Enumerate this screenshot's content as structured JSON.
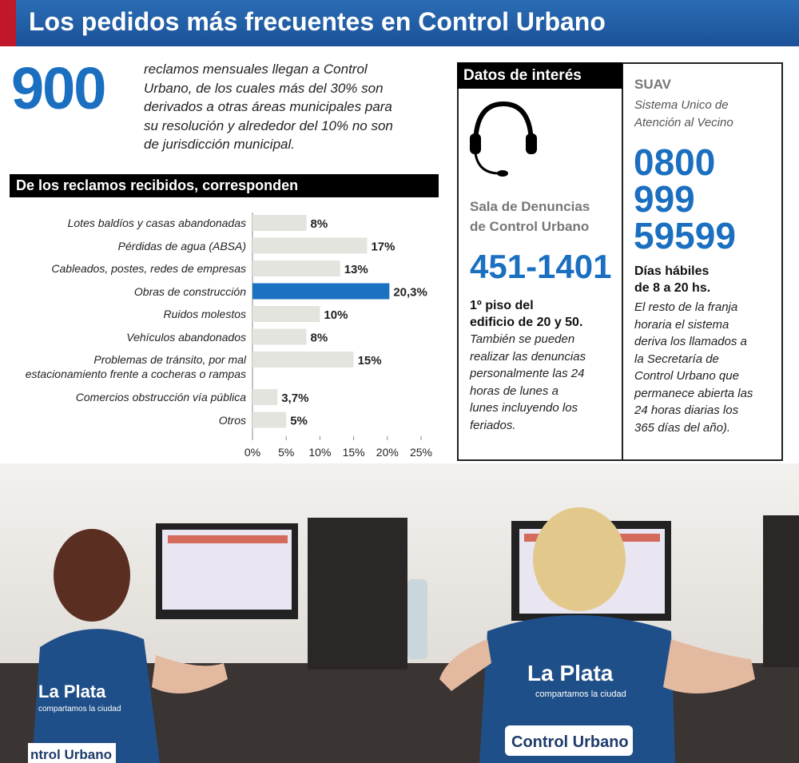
{
  "header": {
    "title": "Los pedidos más frecuentes en Control Urbano"
  },
  "intro": {
    "number": "900",
    "lines": [
      "reclamos mensuales llegan a Control",
      "Urbano, de los cuales más del 30% son",
      "derivados a otras áreas municipales para",
      "su resolución y alrededor del 10% no son",
      "de jurisdicción municipal."
    ]
  },
  "chart_data": {
    "type": "bar",
    "orientation": "horizontal",
    "title": "De los reclamos recibidos, corresponden",
    "categories": [
      "Lotes baldíos y casas abandonadas",
      "Pérdidas de agua (ABSA)",
      "Cableados, postes, redes de empresas",
      "Obras de construcción",
      "Ruidos molestos",
      "Vehículos abandonados",
      "Problemas de tránsito, por mal\nestacionamiento frente a cocheras o rampas",
      "Comercios obstrucción vía pública",
      "Otros"
    ],
    "values": [
      8,
      17,
      13,
      20.3,
      10,
      8,
      15,
      3.7,
      5
    ],
    "value_labels": [
      "8%",
      "17%",
      "13%",
      "20,3%",
      "10%",
      "8%",
      "15%",
      "3,7%",
      "5%"
    ],
    "colors": [
      "#e4e4de",
      "#e4e4de",
      "#e4e4de",
      "#1b72c2",
      "#e4e4de",
      "#e4e4de",
      "#e4e4de",
      "#e4e4de",
      "#e4e4de"
    ],
    "xlim": [
      0,
      25
    ],
    "xticks": [
      {
        "value": 0,
        "label": "0%"
      },
      {
        "value": 5,
        "label": "5%"
      },
      {
        "value": 10,
        "label": "10%"
      },
      {
        "value": 15,
        "label": "15%"
      },
      {
        "value": 20,
        "label": "20%"
      },
      {
        "value": 25,
        "label": "25%"
      }
    ]
  },
  "info": {
    "title": "Datos de interés",
    "left": {
      "name_lines": [
        "Sala de Denuncias",
        "de Control Urbano"
      ],
      "phone": "451-1401",
      "bold_lines": [
        "1º piso del",
        "edificio de 20 y 50."
      ],
      "italic_lines": [
        "También se pueden",
        "realizar las denuncias",
        "personalmente las 24",
        "horas de lunes a",
        "lunes incluyendo los",
        "feriados."
      ]
    },
    "right": {
      "name": "SUAV",
      "subtitle_lines": [
        "Sistema Unico de",
        "Atención al Vecino"
      ],
      "phone_lines": [
        "0800",
        "999",
        "59599"
      ],
      "bold_lines": [
        "Días hábiles",
        "de 8 a 20 hs."
      ],
      "italic_lines": [
        "El resto de la franja",
        "horaria  el sistema",
        "deriva los llamados a",
        "la Secretaría de",
        "Control Urbano que",
        "permanece abierta las",
        "24 horas diarias los",
        "365 días del año)."
      ]
    }
  },
  "photo": {
    "vest_left": "La Plata",
    "vest_left_sub": "compartamos la ciudad",
    "vest_right": "La Plata",
    "vest_right_sub": "compartamos la ciudad",
    "badge_right": "Control Urbano",
    "badge_left": "ntrol Urbano"
  }
}
